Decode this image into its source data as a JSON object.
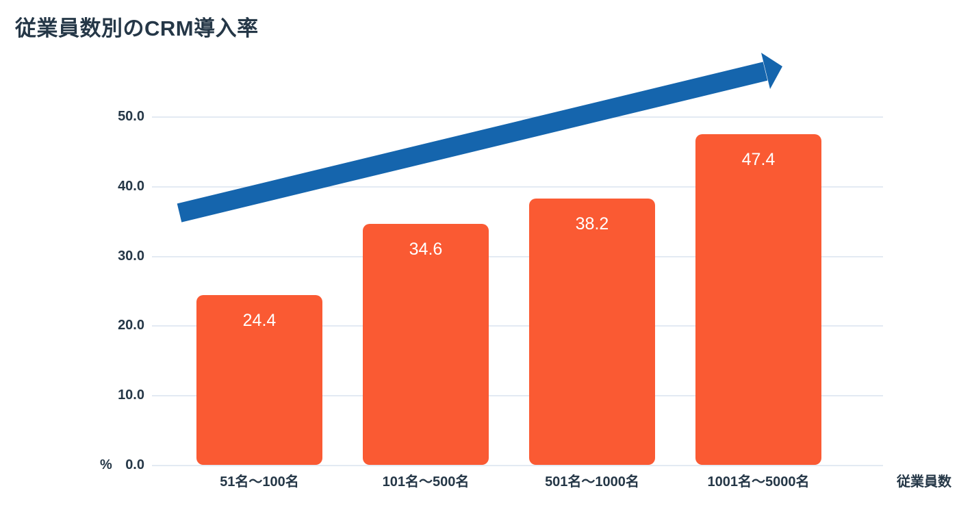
{
  "page": {
    "title": "従業員数別のCRM導入率"
  },
  "chart_data": {
    "type": "bar",
    "title": "従業員数別のCRM導入率",
    "categories": [
      "51名〜100名",
      "101名〜500名",
      "501名〜1000名",
      "1001名〜5000名"
    ],
    "values": [
      24.4,
      34.6,
      38.2,
      47.4
    ],
    "value_labels": [
      "24.4",
      "34.6",
      "38.2",
      "47.4"
    ],
    "xlabel": "従業員数",
    "ylabel": "",
    "y_unit": "%",
    "ylim": [
      0,
      50
    ],
    "y_ticks": [
      {
        "value": 0,
        "label": "0.0"
      },
      {
        "value": 10,
        "label": "10.0"
      },
      {
        "value": 20,
        "label": "20.0"
      },
      {
        "value": 30,
        "label": "30.0"
      },
      {
        "value": 40,
        "label": "40.0"
      },
      {
        "value": 50,
        "label": "50.0"
      }
    ],
    "grid": "horizontal",
    "legend": "none",
    "annotations": [
      {
        "type": "trend-arrow",
        "direction": "up-right",
        "meaning": "increasing adoption rate"
      }
    ],
    "colors": {
      "bar": "#FA5A33",
      "bar_label": "#FFFFFF",
      "arrow": "#1565AD",
      "grid": "#E3EAF3",
      "text": "#253747",
      "background": "#FFFFFF"
    }
  }
}
